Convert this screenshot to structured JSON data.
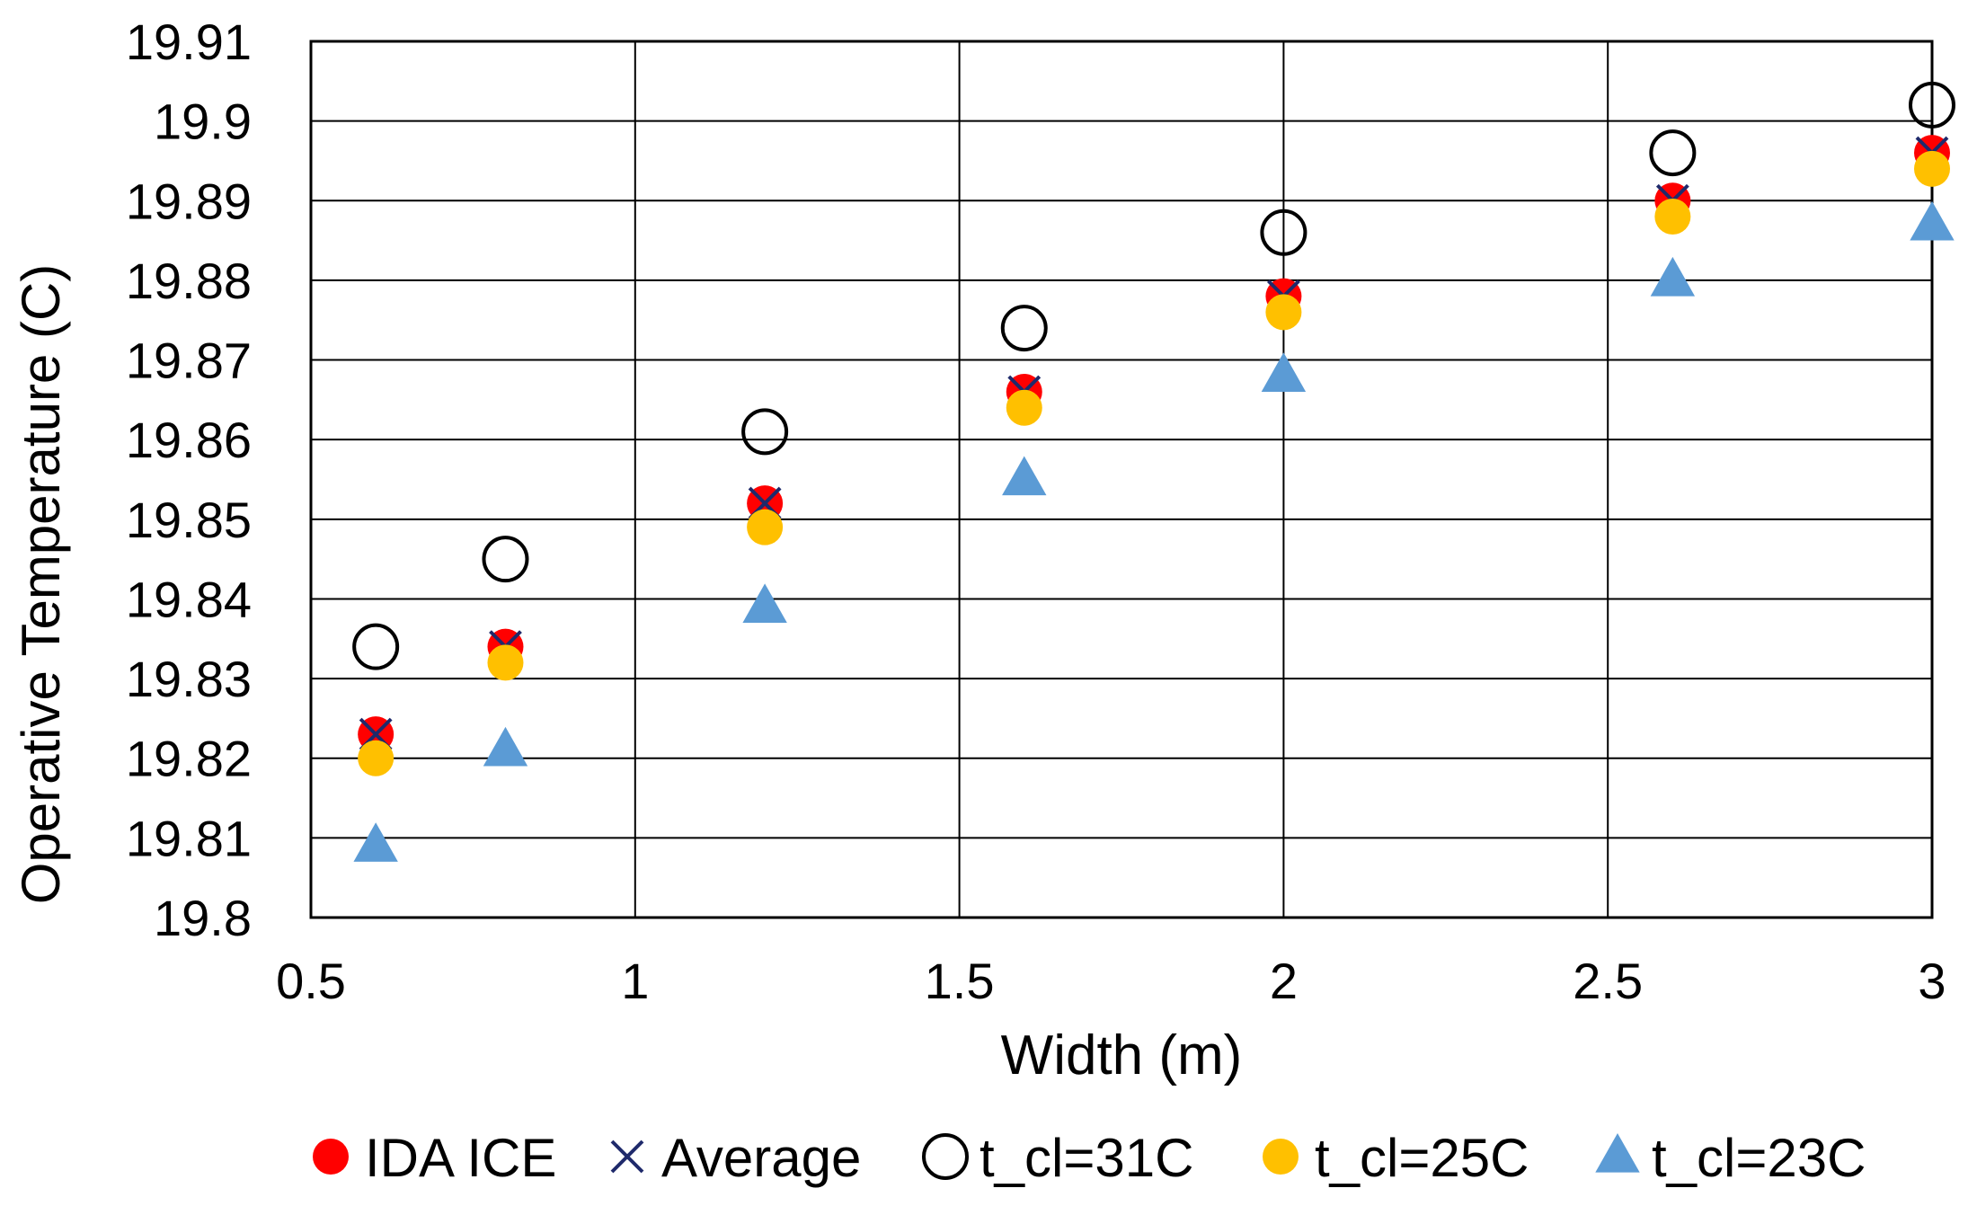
{
  "chart_data": {
    "type": "scatter",
    "title": "",
    "xlabel": "Width (m)",
    "ylabel": "Operative Temperature (C)",
    "xlim": [
      0.5,
      3
    ],
    "ylim": [
      19.8,
      19.91
    ],
    "x_ticks": [
      0.5,
      1,
      1.5,
      2,
      2.5,
      3
    ],
    "x_tick_labels": [
      "0.5",
      "1",
      "1.5",
      "2",
      "2.5",
      "3"
    ],
    "y_ticks": [
      19.8,
      19.81,
      19.82,
      19.83,
      19.84,
      19.85,
      19.86,
      19.87,
      19.88,
      19.89,
      19.9,
      19.91
    ],
    "y_tick_labels": [
      "19.8",
      "19.81",
      "19.82",
      "19.83",
      "19.84",
      "19.85",
      "19.86",
      "19.87",
      "19.88",
      "19.89",
      "19.9",
      "19.91"
    ],
    "grid": true,
    "legend_position": "bottom",
    "x": [
      0.6,
      0.8,
      1.2,
      1.6,
      2.0,
      2.6,
      3.0
    ],
    "series": [
      {
        "name": "IDA ICE",
        "marker": "circle-filled",
        "color": "#ff0000",
        "values": [
          19.823,
          19.834,
          19.852,
          19.866,
          19.878,
          19.89,
          19.896
        ]
      },
      {
        "name": "Average",
        "marker": "x",
        "color": "#1f2a6b",
        "values": [
          19.823,
          19.834,
          19.852,
          19.866,
          19.878,
          19.89,
          19.896
        ]
      },
      {
        "name": "t_cl=31C",
        "marker": "circle-open",
        "color": "#000000",
        "values": [
          19.834,
          19.845,
          19.861,
          19.874,
          19.886,
          19.896,
          19.902
        ]
      },
      {
        "name": "t_cl=25C",
        "marker": "circle-filled",
        "color": "#ffc000",
        "values": [
          19.82,
          19.832,
          19.849,
          19.864,
          19.876,
          19.888,
          19.894
        ]
      },
      {
        "name": "t_cl=23C",
        "marker": "triangle",
        "color": "#5b9bd5",
        "values": [
          19.809,
          19.821,
          19.839,
          19.855,
          19.868,
          19.88,
          19.887
        ]
      }
    ]
  }
}
